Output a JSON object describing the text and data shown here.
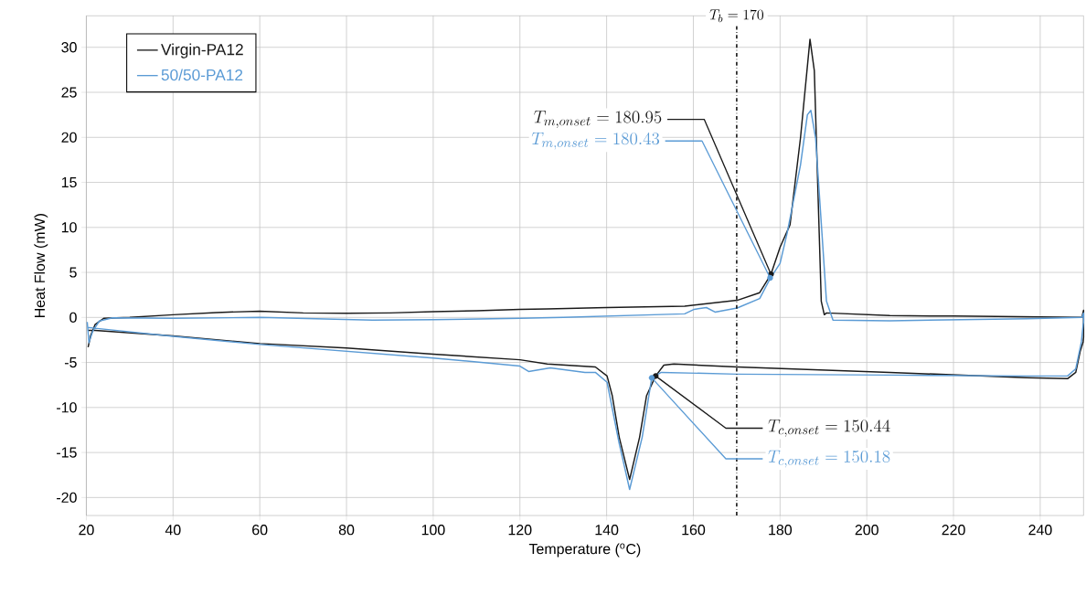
{
  "chart_data": {
    "type": "line",
    "xlabel": "Temperature ($^{o}$C)",
    "ylabel": "Heat Flow (mW)",
    "xlim": [
      20,
      250
    ],
    "xticks": [
      20,
      40,
      60,
      80,
      100,
      120,
      140,
      160,
      180,
      200,
      220,
      240
    ],
    "ylim": [
      -22,
      33.5
    ],
    "yticks": [
      -20,
      -15,
      -10,
      -5,
      0,
      5,
      10,
      15,
      20,
      25,
      30
    ],
    "grid": true,
    "legend": "top left",
    "series": [
      {
        "name": "Virgin-PA12",
        "color": "#1a1a1a",
        "x": [
          20.4,
          21,
          22,
          24,
          30,
          40,
          50,
          60,
          70,
          80,
          90,
          100,
          110,
          120,
          126.3,
          140,
          158,
          170.1,
          175.3,
          177.9,
          180,
          182.3,
          184.7,
          186.9,
          187.9,
          188.6,
          189.5,
          190.2,
          190.7,
          205.3,
          220,
          240,
          249.6,
          250,
          250,
          249.9,
          249.2,
          248.2,
          246.3,
          236.8,
          205.3,
          170.1,
          155.5,
          153.2,
          151.3,
          149.2,
          147.6,
          145.3,
          142.9,
          141.3,
          140.1,
          137.4,
          126.3,
          120,
          100,
          80,
          60,
          40,
          22,
          20.3
        ],
        "values": [
          -3.3,
          -2,
          -0.8,
          -0.1,
          0,
          0.3,
          0.55,
          0.7,
          0.5,
          0.46,
          0.5,
          0.64,
          0.75,
          0.9,
          0.94,
          1.1,
          1.25,
          1.9,
          2.75,
          4.8,
          7.8,
          10.3,
          19.9,
          30.9,
          27.4,
          16.1,
          1.8,
          0.3,
          0.5,
          0.2,
          0.15,
          0.05,
          0,
          0.8,
          -2.2,
          -2.7,
          -3.8,
          -6.1,
          -6.8,
          -6.7,
          -6.1,
          -5.5,
          -5.17,
          -5.3,
          -6.5,
          -8.7,
          -13.3,
          -18,
          -13.3,
          -8.7,
          -6.5,
          -5.5,
          -5.17,
          -4.7,
          -4.07,
          -3.4,
          -2.9,
          -2.04,
          -1.43,
          -1.45
        ]
      },
      {
        "name": "50/50-PA12",
        "color": "#5b9bd5",
        "x": [
          20.2,
          20.6,
          21.5,
          23,
          26,
          40,
          60,
          86,
          100,
          120,
          130,
          158,
          160.2,
          163,
          165,
          170.1,
          175.3,
          177.7,
          180,
          181.6,
          184.7,
          186.3,
          187.1,
          188.2,
          189.5,
          190.7,
          192.2,
          205.3,
          236.8,
          249.6,
          250,
          250,
          249.9,
          249.5,
          248.2,
          246.3,
          236.8,
          205.3,
          170.1,
          152.6,
          150.4,
          148.2,
          145.3,
          142.9,
          140.1,
          137.4,
          135,
          127,
          122,
          120,
          100,
          60,
          40,
          22,
          20.3
        ],
        "values": [
          -0.5,
          -2.8,
          -1.5,
          -0.4,
          -0.05,
          -0.1,
          0,
          -0.3,
          -0.25,
          -0.1,
          0,
          0.4,
          0.9,
          1.1,
          0.6,
          1.05,
          2.1,
          4.3,
          6,
          9.3,
          16.9,
          22.5,
          23,
          19.9,
          10.5,
          1.8,
          -0.3,
          -0.37,
          -0.15,
          0,
          0.5,
          -0.5,
          -0.8,
          -2.7,
          -5.7,
          -6.5,
          -6.5,
          -6.4,
          -6.3,
          -6.1,
          -6.7,
          -13.3,
          -19.1,
          -14,
          -7.2,
          -6.1,
          -6.1,
          -5.6,
          -6,
          -5.4,
          -4.5,
          -3,
          -2.1,
          -1.2,
          -1.1
        ]
      }
    ],
    "ref_lines": [
      {
        "axis": "x",
        "value": 170,
        "label": "T_{b} = 170",
        "color": "#000000",
        "line_style": "dashdot"
      }
    ],
    "annotations": [
      {
        "text": "T_{m, onset} = 180.95",
        "x": 177.9,
        "y": 4.8
      },
      {
        "text": "T_{m, onset} = 180.43",
        "x": 177.7,
        "y": 4.4
      },
      {
        "text": "T_{c, onset} = 150.44",
        "x": 151.3,
        "y": -6.5
      },
      {
        "text": "T_{c, onset} = 150.18",
        "x": 150.4,
        "y": -6.7
      }
    ]
  }
}
